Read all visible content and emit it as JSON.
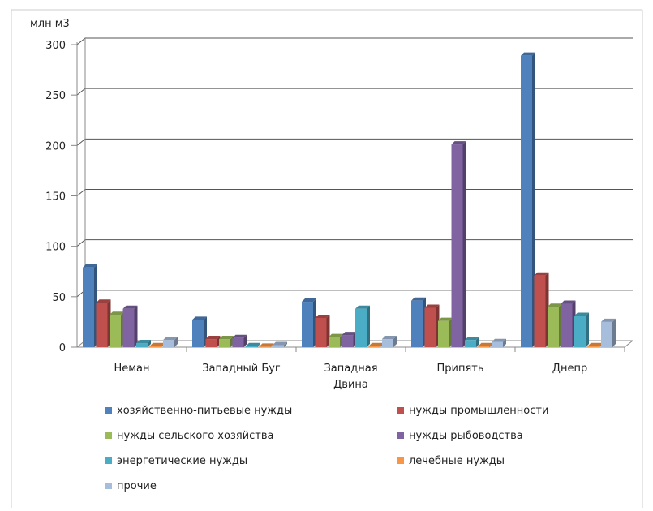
{
  "chart_data": {
    "type": "bar",
    "ylabel": "млн м3",
    "ylim": [
      0,
      300
    ],
    "yticks": [
      0,
      50,
      100,
      150,
      200,
      250,
      300
    ],
    "grid": true,
    "legend_position": "bottom",
    "categories": [
      "Неман",
      "Западный Буг",
      "Западная Двина",
      "Припять",
      "Днепр"
    ],
    "category_lines": [
      [
        "Неман"
      ],
      [
        "Западный Буг"
      ],
      [
        "Западная",
        "Двина"
      ],
      [
        "Припять"
      ],
      [
        "Днепр"
      ]
    ],
    "series": [
      {
        "name": "хозяйственно-питьевые нужды",
        "color": "#4F81BD",
        "values": [
          79,
          27,
          45,
          46,
          289
        ]
      },
      {
        "name": "нужды промышленности",
        "color": "#C0504D",
        "values": [
          44,
          8,
          29,
          39,
          71
        ]
      },
      {
        "name": "нужды сельского хозяйства",
        "color": "#9BBB59",
        "values": [
          32,
          8,
          10,
          26,
          40
        ]
      },
      {
        "name": "нужды рыбоводства",
        "color": "#8064A2",
        "values": [
          38,
          9,
          12,
          201,
          43
        ]
      },
      {
        "name": "энергетические нужды",
        "color": "#4BACC6",
        "values": [
          4,
          1,
          38,
          7,
          31
        ]
      },
      {
        "name": "лечебные нужды",
        "color": "#F79646",
        "values": [
          1,
          0.5,
          1,
          1,
          1
        ]
      },
      {
        "name": "прочие",
        "color": "#A6BDDC",
        "values": [
          7,
          2,
          8,
          5,
          25
        ]
      }
    ]
  }
}
